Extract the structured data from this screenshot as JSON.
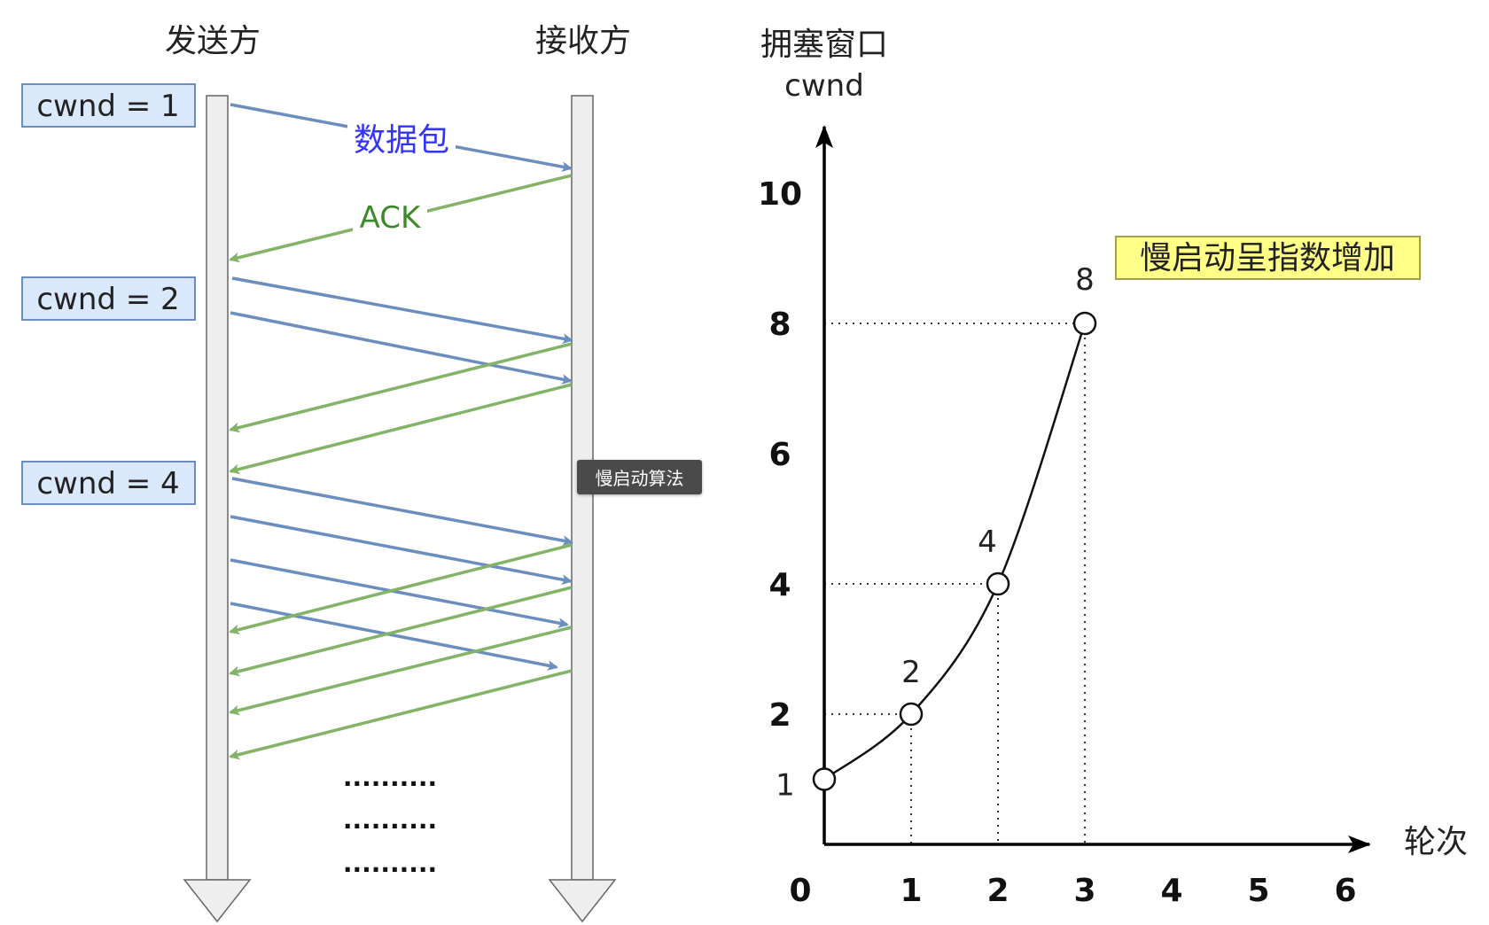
{
  "left": {
    "sender_label": "发送方",
    "receiver_label": "接收方",
    "cwnd_boxes": [
      "cwnd = 1",
      "cwnd = 2",
      "cwnd = 4"
    ],
    "packet_label": "数据包",
    "ack_label": "ACK",
    "ellipsis": [
      "..........",
      "..........",
      ".........."
    ],
    "tooltip": "慢启动算法"
  },
  "chart_data": {
    "type": "line",
    "title": "慢启动呈指数增加",
    "ylabel_line1": "拥塞窗口",
    "ylabel_line2": "cwnd",
    "xlabel": "轮次",
    "x_ticks": [
      "0",
      "1",
      "2",
      "3",
      "4",
      "5",
      "6"
    ],
    "y_ticks": [
      "2",
      "4",
      "6",
      "8",
      "10"
    ],
    "series": [
      {
        "x": [
          0,
          1,
          2,
          3
        ],
        "y": [
          1,
          2,
          4,
          8
        ]
      }
    ],
    "point_labels": [
      "1",
      "2",
      "4",
      "8"
    ]
  },
  "colors": {
    "packet": "#6c8ebf",
    "ack": "#82b366",
    "packet_text": "#3333ff",
    "ack_text": "#3d8a2b",
    "box_fill": "#dae8fc",
    "box_stroke": "#6c8ebf",
    "note_fill": "#ffff88",
    "note_stroke": "#a0a050"
  }
}
